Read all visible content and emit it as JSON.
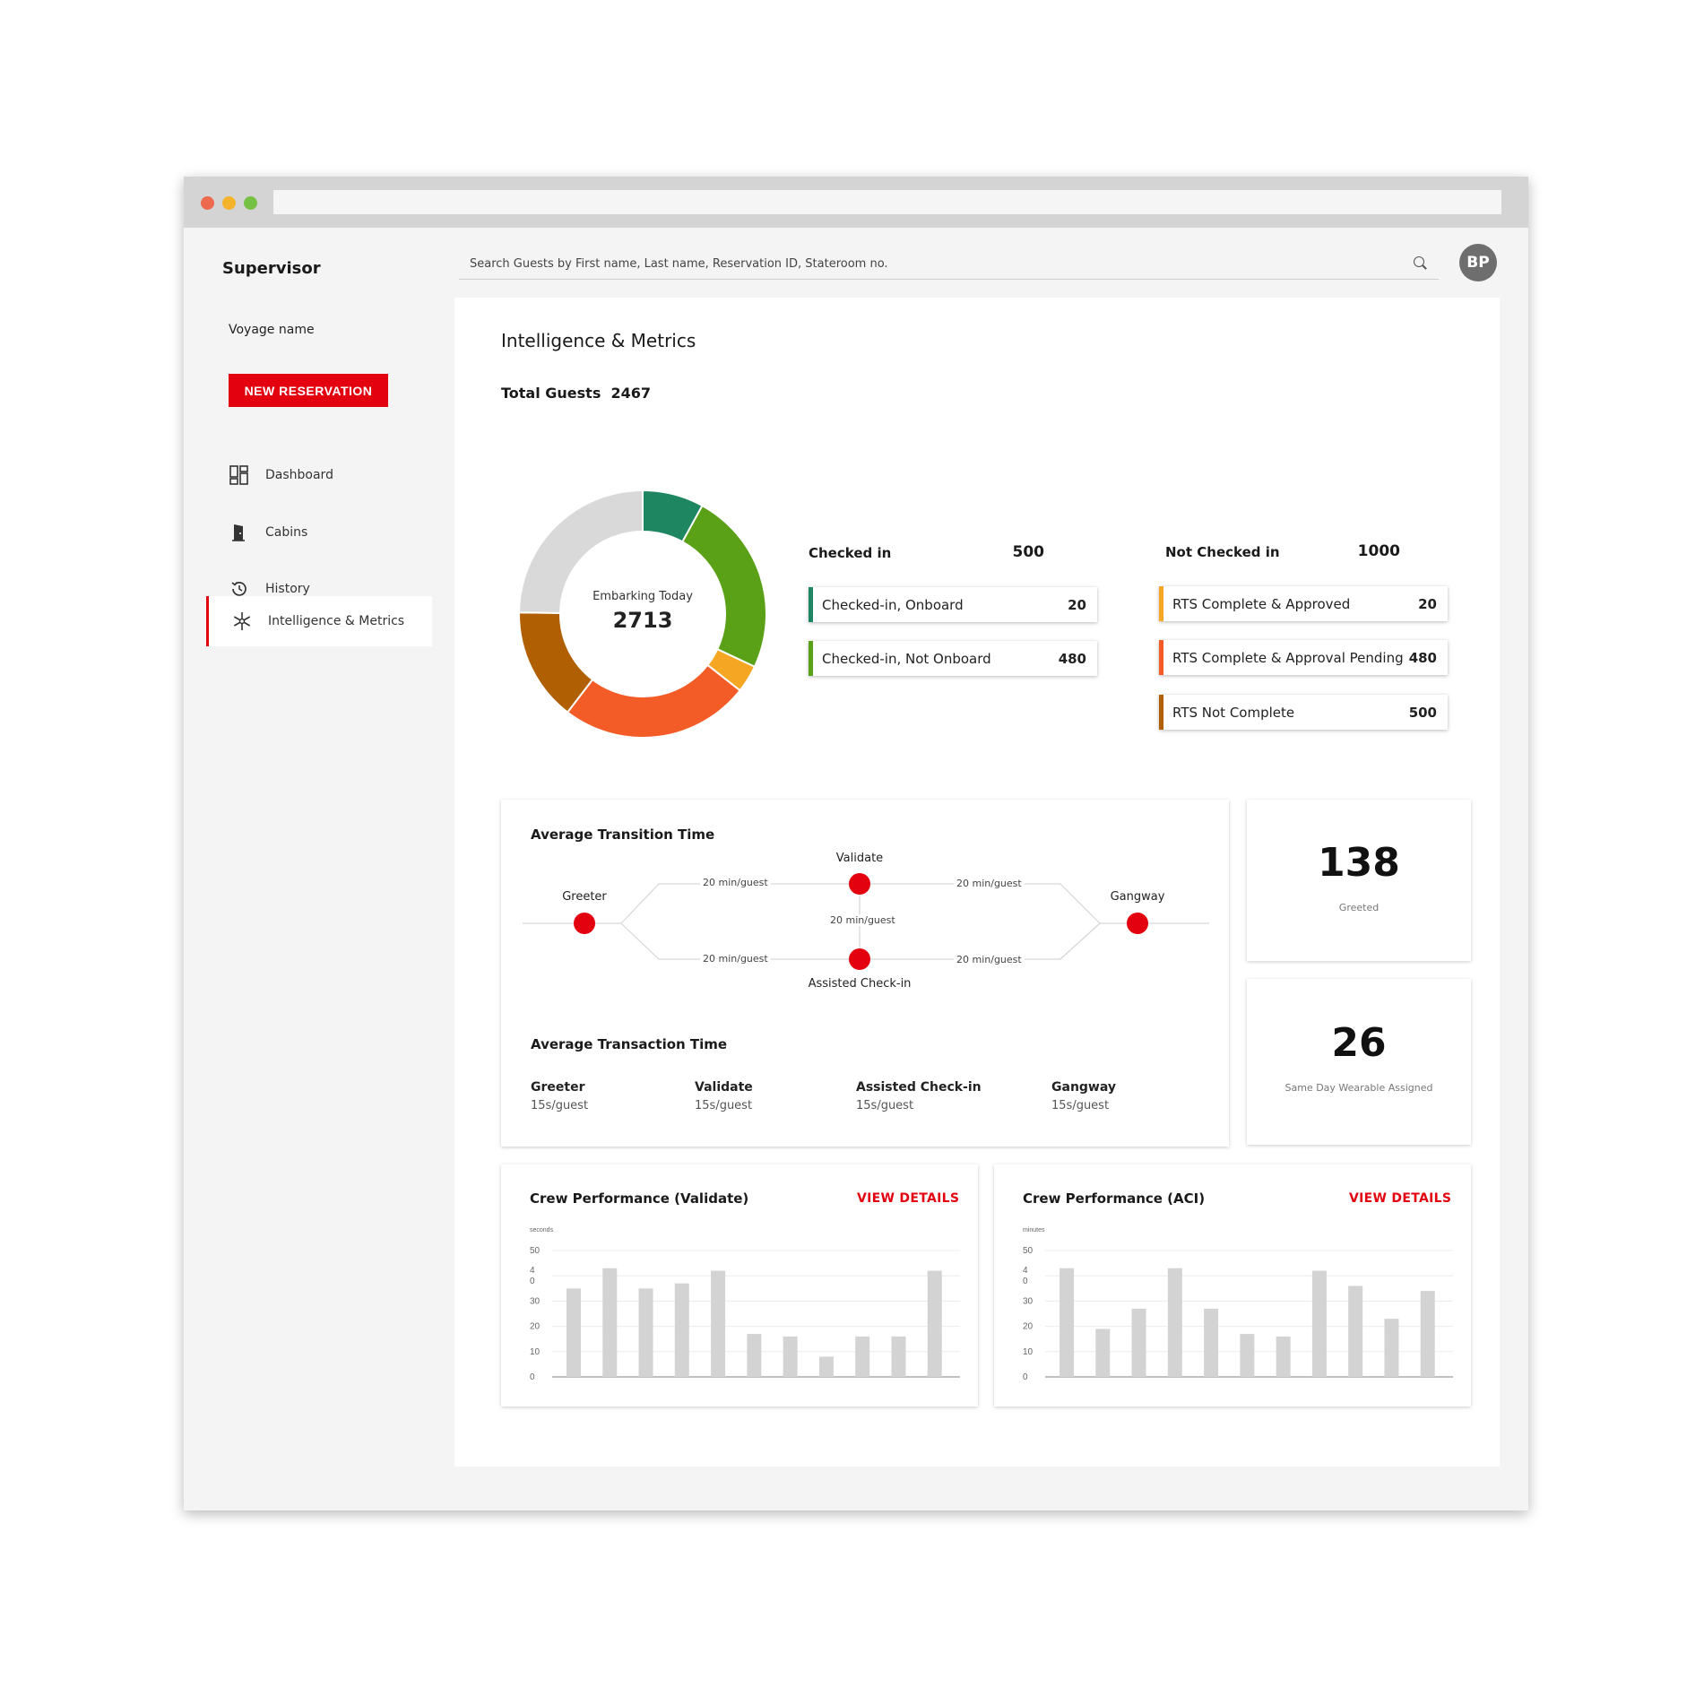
{
  "window": {
    "dots": [
      {
        "name": "close-dot",
        "color": "#ed6a4f"
      },
      {
        "name": "minimize-dot",
        "color": "#f3b42b"
      },
      {
        "name": "maximize-dot",
        "color": "#76c043"
      }
    ]
  },
  "sidebar": {
    "brand": "Supervisor",
    "voyage": "Voyage name",
    "new_reservation": "NEW RESERVATION",
    "items": [
      {
        "label": "Dashboard",
        "icon": "dashboard-icon"
      },
      {
        "label": "Cabins",
        "icon": "door-icon"
      },
      {
        "label": "History",
        "icon": "history-icon"
      },
      {
        "label": "Intelligence & Metrics",
        "icon": "snowflake-icon"
      }
    ]
  },
  "header": {
    "search_placeholder": "Search Guests by First name, Last name, Reservation ID, Stateroom no.",
    "avatar_initials": "BP"
  },
  "main": {
    "title": "Intelligence & Metrics",
    "total_label": "Total Guests",
    "total_value": "2467",
    "embarking_label": "Embarking Today",
    "embarking_value": "2713",
    "checked_in": {
      "label": "Checked in",
      "value": "500",
      "items": [
        {
          "label": "Checked-in, Onboard",
          "value": "20",
          "color": "#1e8660"
        },
        {
          "label": "Checked-in, Not Onboard",
          "value": "480",
          "color": "#5aa118"
        }
      ]
    },
    "not_checked_in": {
      "label": "Not Checked in",
      "value": "1000",
      "items": [
        {
          "label": "RTS Complete & Approved",
          "value": "20",
          "color": "#f5a623"
        },
        {
          "label": "RTS Complete & Approval Pending",
          "value": "480",
          "color": "#f45c27"
        },
        {
          "label": "RTS Not Complete",
          "value": "500",
          "color": "#b06002"
        }
      ]
    },
    "donut": {
      "segments": [
        {
          "value": 20,
          "color": "#1e8660"
        },
        {
          "value": 60,
          "color": "#5aa118"
        },
        {
          "value": 9,
          "color": "#f5a623"
        },
        {
          "value": 62,
          "color": "#f45c27"
        },
        {
          "value": 37,
          "color": "#b06002"
        },
        {
          "value": 62,
          "color": "#d9d9d9"
        }
      ]
    },
    "transition": {
      "title": "Average Transition Time",
      "nodes": {
        "greeter": "Greeter",
        "validate": "Validate",
        "assisted": "Assisted Check-in",
        "gangway": "Gangway"
      },
      "edges": {
        "greeter_validate": "20 min/guest",
        "greeter_assisted": "20 min/guest",
        "validate_gangway": "20 min/guest",
        "assisted_gangway": "20 min/guest",
        "validate_assisted": "20 min/guest"
      }
    },
    "transaction": {
      "title": "Average Transaction Time",
      "items": [
        {
          "name": "Greeter",
          "value": "15s/guest"
        },
        {
          "name": "Validate",
          "value": "15s/guest"
        },
        {
          "name": "Assisted Check-in",
          "value": "15s/guest"
        },
        {
          "name": "Gangway",
          "value": "15s/guest"
        }
      ]
    },
    "kpis": [
      {
        "value": "138",
        "label": "Greeted"
      },
      {
        "value": "26",
        "label": "Same Day Wearable Assigned"
      }
    ],
    "crew_validate": {
      "title": "Crew Performance (Validate)",
      "link": "VIEW DETAILS"
    },
    "crew_aci": {
      "title": "Crew Performance (ACI)",
      "link": "VIEW DETAILS"
    }
  },
  "chart_data": [
    {
      "type": "bar",
      "title": "Crew Performance (Validate)",
      "ylabel": "seconds",
      "ylim": [
        0,
        50
      ],
      "yticks": [
        "50",
        "4\n0",
        "30",
        "20",
        "10",
        "0"
      ],
      "values": [
        35,
        43,
        35,
        37,
        42,
        17,
        16,
        8,
        16,
        16,
        42
      ],
      "color": "#d3d3d3"
    },
    {
      "type": "bar",
      "title": "Crew Performance (ACI)",
      "ylabel": "minutes",
      "ylim": [
        0,
        50
      ],
      "yticks": [
        "50",
        "4\n0",
        "30",
        "20",
        "10",
        "0"
      ],
      "values": [
        43,
        19,
        27,
        43,
        27,
        17,
        16,
        42,
        36,
        23,
        34
      ],
      "color": "#d3d3d3"
    }
  ]
}
